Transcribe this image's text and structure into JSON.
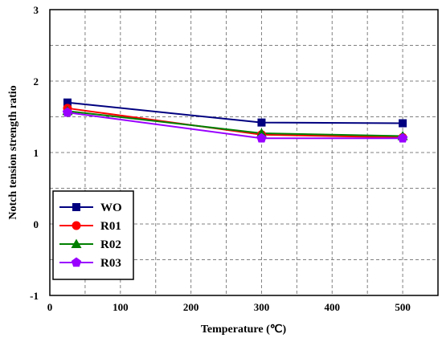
{
  "chart_data": {
    "type": "line",
    "xlabel": "Temperature (℃)",
    "ylabel": "Notch tension strength ratio",
    "xlim": [
      0,
      550
    ],
    "ylim": [
      -1,
      3
    ],
    "xticks": [
      0,
      100,
      200,
      300,
      400,
      500
    ],
    "yticks": [
      -1,
      0,
      1,
      2,
      3
    ],
    "grid": true,
    "legend_position": "bottom-left",
    "series": [
      {
        "name": "WO",
        "color": "#000080",
        "marker": "square",
        "x": [
          25,
          300,
          500
        ],
        "y": [
          1.7,
          1.42,
          1.41
        ]
      },
      {
        "name": "R01",
        "color": "#ff0000",
        "marker": "circle",
        "x": [
          25,
          300,
          500
        ],
        "y": [
          1.62,
          1.25,
          1.21
        ]
      },
      {
        "name": "R02",
        "color": "#008000",
        "marker": "triangle",
        "x": [
          25,
          300,
          500
        ],
        "y": [
          1.58,
          1.27,
          1.23
        ]
      },
      {
        "name": "R03",
        "color": "#9900ff",
        "marker": "pentagon",
        "x": [
          25,
          300,
          500
        ],
        "y": [
          1.56,
          1.2,
          1.2
        ]
      }
    ]
  }
}
